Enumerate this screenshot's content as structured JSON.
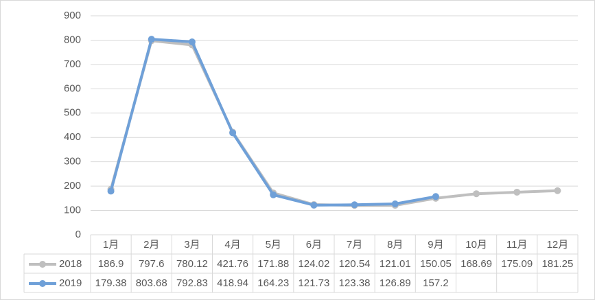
{
  "chart_data": {
    "type": "line",
    "categories": [
      "1月",
      "2月",
      "3月",
      "4月",
      "5月",
      "6月",
      "7月",
      "8月",
      "9月",
      "10月",
      "11月",
      "12月"
    ],
    "series": [
      {
        "name": "2018",
        "color": "#bfbfbf",
        "values": [
          186.9,
          797.6,
          780.12,
          421.76,
          171.88,
          124.02,
          120.54,
          121.01,
          150.05,
          168.69,
          175.09,
          181.25
        ]
      },
      {
        "name": "2019",
        "color": "#6fa0d8",
        "values": [
          179.38,
          803.68,
          792.83,
          418.94,
          164.23,
          121.73,
          123.38,
          126.89,
          157.2,
          null,
          null,
          null
        ]
      }
    ],
    "ylim": [
      0,
      900
    ],
    "yticks": [
      0,
      100,
      200,
      300,
      400,
      500,
      600,
      700,
      800,
      900
    ],
    "grid": true
  }
}
